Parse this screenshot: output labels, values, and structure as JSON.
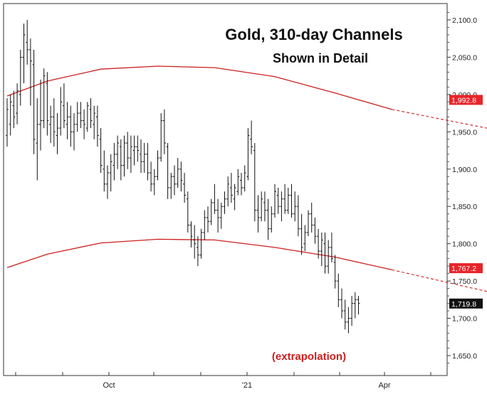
{
  "chart_data": {
    "type": "ohlc-bar",
    "title": "Gold, 310-day Channels",
    "subtitle": "Shown in Detail",
    "annotation": "(extrapolation)",
    "xlabel": "",
    "ylabel": "",
    "x_ticks": [
      "Oct",
      "'21",
      "Apr"
    ],
    "y_ticks": [
      "2,100.0",
      "2,050.0",
      "2,000.0",
      "1,950.0",
      "1,900.0",
      "1,850.0",
      "1,800.0",
      "1,750.0",
      "1,700.0",
      "1,650.0"
    ],
    "ylim": [
      1620,
      2120
    ],
    "price_labels": [
      {
        "text": "1,992.8",
        "value": 1992.8,
        "color": "#e8242a"
      },
      {
        "text": "1,767.2",
        "value": 1767.2,
        "color": "#e8242a"
      },
      {
        "text": "1,719.8",
        "value": 1719.8,
        "color": "#111111"
      }
    ],
    "colors": {
      "price_bars": "#111111",
      "channel": "#cc1f1f",
      "annotation": "#cc1f1f"
    },
    "channels": [
      {
        "solid": [
          [
            0,
            1998
          ],
          [
            12,
            2018
          ],
          [
            28,
            2034
          ],
          [
            45,
            2038
          ],
          [
            62,
            2036
          ],
          [
            80,
            2024
          ],
          [
            98,
            2002
          ],
          [
            115,
            1980
          ]
        ],
        "extrapolated": [
          [
            115,
            1980
          ],
          [
            270,
            1843
          ]
        ]
      },
      {
        "solid": [
          [
            0,
            1768
          ],
          [
            12,
            1786
          ],
          [
            28,
            1801
          ],
          [
            45,
            1806
          ],
          [
            62,
            1805
          ],
          [
            80,
            1795
          ],
          [
            98,
            1782
          ],
          [
            115,
            1765
          ]
        ],
        "extrapolated": [
          [
            115,
            1765
          ],
          [
            256,
            1621
          ]
        ]
      }
    ],
    "bars": [
      [
        1945,
        1995,
        1930,
        1980
      ],
      [
        1960,
        2000,
        1945,
        1990
      ],
      [
        1985,
        2005,
        1955,
        1970
      ],
      [
        1975,
        2015,
        1960,
        2005
      ],
      [
        2000,
        2060,
        1985,
        2050
      ],
      [
        2050,
        2095,
        2015,
        2080
      ],
      [
        2070,
        2100,
        2040,
        2060
      ],
      [
        2060,
        2075,
        1985,
        2045
      ],
      [
        2040,
        2060,
        1920,
        1940
      ],
      [
        1935,
        1995,
        1885,
        1960
      ],
      [
        1960,
        2020,
        1925,
        1965
      ],
      [
        1965,
        2035,
        1955,
        2025
      ],
      [
        2015,
        2030,
        1945,
        1965
      ],
      [
        1960,
        1985,
        1935,
        1970
      ],
      [
        1970,
        1995,
        1930,
        1950
      ],
      [
        1945,
        1975,
        1920,
        1955
      ],
      [
        1955,
        2010,
        1945,
        1990
      ],
      [
        1985,
        2015,
        1955,
        1965
      ],
      [
        1960,
        1990,
        1940,
        1970
      ],
      [
        1970,
        1985,
        1930,
        1950
      ],
      [
        1950,
        1975,
        1925,
        1960
      ],
      [
        1960,
        1990,
        1950,
        1975
      ],
      [
        1975,
        1990,
        1955,
        1965
      ],
      [
        1965,
        1980,
        1940,
        1960
      ],
      [
        1955,
        1990,
        1950,
        1985
      ],
      [
        1980,
        1995,
        1955,
        1965
      ],
      [
        1960,
        1985,
        1940,
        1975
      ],
      [
        1970,
        1985,
        1930,
        1945
      ],
      [
        1940,
        1955,
        1895,
        1905
      ],
      [
        1900,
        1925,
        1870,
        1880
      ],
      [
        1880,
        1905,
        1860,
        1895
      ],
      [
        1895,
        1920,
        1870,
        1910
      ],
      [
        1905,
        1935,
        1885,
        1920
      ],
      [
        1920,
        1945,
        1900,
        1935
      ],
      [
        1930,
        1940,
        1885,
        1905
      ],
      [
        1905,
        1945,
        1890,
        1935
      ],
      [
        1935,
        1950,
        1900,
        1915
      ],
      [
        1915,
        1945,
        1895,
        1930
      ],
      [
        1925,
        1945,
        1905,
        1930
      ],
      [
        1930,
        1945,
        1910,
        1925
      ],
      [
        1920,
        1940,
        1895,
        1910
      ],
      [
        1910,
        1935,
        1895,
        1920
      ],
      [
        1920,
        1935,
        1885,
        1895
      ],
      [
        1895,
        1910,
        1870,
        1880
      ],
      [
        1880,
        1900,
        1865,
        1890
      ],
      [
        1890,
        1925,
        1885,
        1915
      ],
      [
        1915,
        1975,
        1910,
        1965
      ],
      [
        1965,
        1980,
        1920,
        1935
      ],
      [
        1930,
        1935,
        1860,
        1875
      ],
      [
        1875,
        1895,
        1860,
        1890
      ],
      [
        1890,
        1905,
        1865,
        1880
      ],
      [
        1880,
        1915,
        1875,
        1900
      ],
      [
        1900,
        1910,
        1870,
        1885
      ],
      [
        1880,
        1895,
        1855,
        1865
      ],
      [
        1860,
        1870,
        1815,
        1825
      ],
      [
        1825,
        1830,
        1795,
        1810
      ],
      [
        1805,
        1825,
        1780,
        1800
      ],
      [
        1795,
        1810,
        1770,
        1785
      ],
      [
        1785,
        1820,
        1780,
        1815
      ],
      [
        1815,
        1845,
        1805,
        1835
      ],
      [
        1835,
        1850,
        1815,
        1830
      ],
      [
        1830,
        1860,
        1825,
        1855
      ],
      [
        1855,
        1880,
        1840,
        1845
      ],
      [
        1845,
        1860,
        1815,
        1835
      ],
      [
        1835,
        1855,
        1820,
        1850
      ],
      [
        1850,
        1870,
        1840,
        1860
      ],
      [
        1860,
        1890,
        1850,
        1880
      ],
      [
        1875,
        1895,
        1855,
        1865
      ],
      [
        1860,
        1880,
        1845,
        1875
      ],
      [
        1870,
        1900,
        1865,
        1890
      ],
      [
        1885,
        1895,
        1865,
        1875
      ],
      [
        1875,
        1905,
        1870,
        1895
      ],
      [
        1890,
        1955,
        1885,
        1945
      ],
      [
        1940,
        1965,
        1920,
        1930
      ],
      [
        1925,
        1935,
        1830,
        1845
      ],
      [
        1845,
        1865,
        1815,
        1835
      ],
      [
        1835,
        1870,
        1830,
        1860
      ],
      [
        1855,
        1870,
        1830,
        1845
      ],
      [
        1845,
        1860,
        1805,
        1820
      ],
      [
        1820,
        1850,
        1815,
        1840
      ],
      [
        1840,
        1880,
        1835,
        1870
      ],
      [
        1865,
        1875,
        1840,
        1850
      ],
      [
        1850,
        1870,
        1830,
        1860
      ],
      [
        1860,
        1880,
        1840,
        1845
      ],
      [
        1845,
        1875,
        1840,
        1865
      ],
      [
        1865,
        1880,
        1835,
        1840
      ],
      [
        1840,
        1870,
        1830,
        1850
      ],
      [
        1850,
        1865,
        1810,
        1820
      ],
      [
        1820,
        1840,
        1785,
        1795
      ],
      [
        1800,
        1825,
        1790,
        1815
      ],
      [
        1815,
        1845,
        1810,
        1840
      ],
      [
        1840,
        1855,
        1815,
        1825
      ],
      [
        1825,
        1835,
        1800,
        1810
      ],
      [
        1810,
        1820,
        1780,
        1790
      ],
      [
        1790,
        1815,
        1770,
        1805
      ],
      [
        1800,
        1815,
        1760,
        1770
      ],
      [
        1770,
        1805,
        1760,
        1795
      ],
      [
        1795,
        1815,
        1775,
        1780
      ],
      [
        1775,
        1785,
        1740,
        1750
      ],
      [
        1750,
        1760,
        1715,
        1725
      ],
      [
        1725,
        1740,
        1700,
        1710
      ],
      [
        1710,
        1725,
        1685,
        1695
      ],
      [
        1695,
        1715,
        1680,
        1700
      ],
      [
        1700,
        1730,
        1690,
        1720
      ],
      [
        1720,
        1735,
        1700,
        1725
      ],
      [
        1725,
        1730,
        1705,
        1720
      ]
    ]
  }
}
